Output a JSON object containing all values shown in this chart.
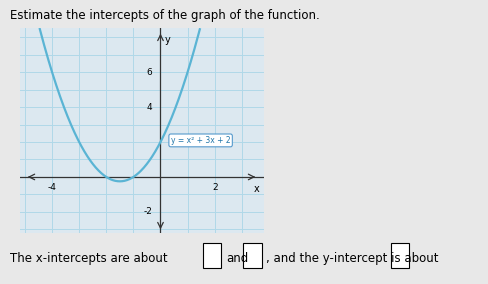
{
  "title": "Estimate the intercepts of the graph of the function.",
  "title_fontsize": 8.5,
  "equation_label": "y = x² + 3x + 2",
  "xlim": [
    -5.2,
    3.8
  ],
  "ylim": [
    -3.2,
    8.5
  ],
  "curve_color": "#5ab4d4",
  "curve_linewidth": 1.6,
  "grid_color": "#b0d8e8",
  "background_color": "#e8e8e8",
  "plot_bg": "#dce8f0",
  "outer_bg": "#d0d0d0",
  "text_fontsize": 8.5,
  "bottom_bg": "#6ecfba"
}
